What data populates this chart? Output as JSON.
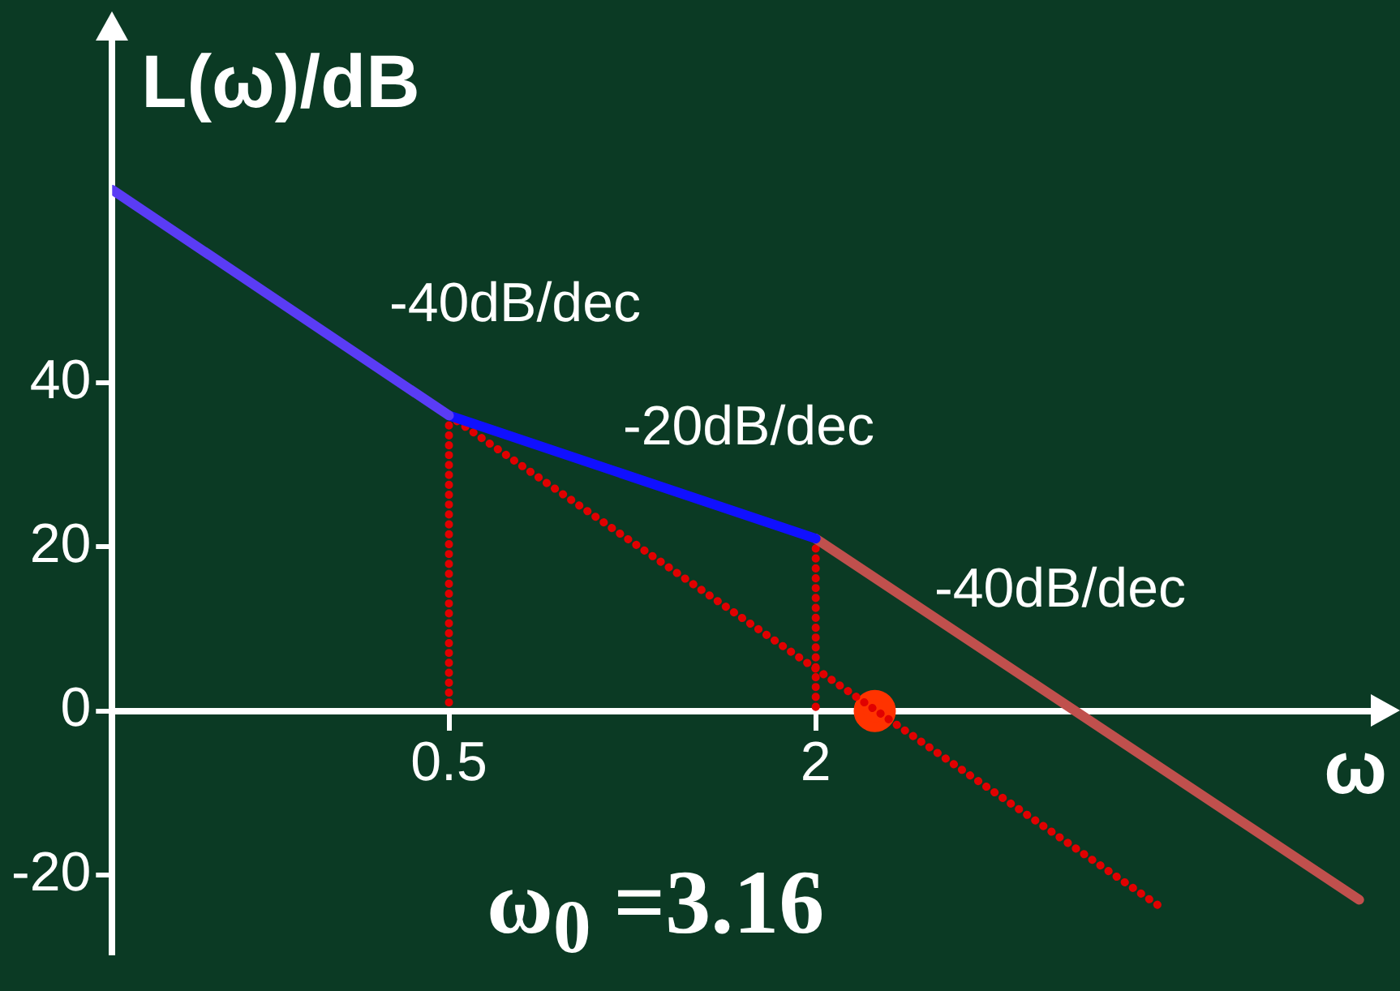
{
  "chart_data": {
    "type": "line",
    "xlabel": "ω",
    "ylabel": "L(ω)/dB",
    "xlim": [
      0.14,
      16.5
    ],
    "ylim": [
      -29.5,
      82
    ],
    "log": "x",
    "xticks": [
      0.5,
      2
    ],
    "yticks": [
      -20,
      0,
      20,
      40
    ],
    "grid": false,
    "legend": false,
    "marker": "none",
    "series": [
      {
        "color": "#5a3cf5",
        "x": [
          0.14,
          0.5
        ],
        "values": [
          63.5,
          36
        ]
      },
      {
        "color": "#1010ff",
        "x": [
          0.5,
          2
        ],
        "values": [
          36,
          21
        ]
      },
      {
        "color": "#c0504d",
        "x": [
          2,
          15.6
        ],
        "values": [
          21,
          -23
        ]
      },
      {
        "color": "#e00000",
        "line_style": "dotted",
        "x": [
          0.5,
          0.5
        ],
        "values": [
          36,
          0
        ]
      },
      {
        "color": "#e00000",
        "line_style": "dotted",
        "x": [
          2,
          2
        ],
        "values": [
          21,
          0
        ]
      },
      {
        "color": "#e00000",
        "line_style": "dotted",
        "x": [
          0.5,
          7.4
        ],
        "values": [
          36,
          -24
        ]
      },
      {
        "type": "scatter",
        "marker": "circle",
        "color": "#ff3300",
        "x": [
          2.5
        ],
        "values": [
          0
        ]
      }
    ],
    "annotations": [
      "-40dB/dec",
      "-20dB/dec",
      "-40dB/dec",
      "ω$_{0}$ =3.16"
    ]
  }
}
